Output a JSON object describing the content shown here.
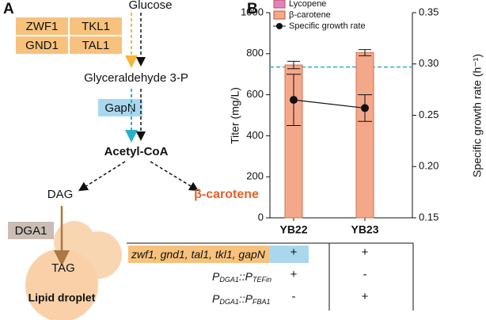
{
  "panel_a": {
    "label": "A",
    "enzymes_top": [
      "ZWF1",
      "TKL1",
      "GND1",
      "TAL1"
    ],
    "glucose": "Glucose",
    "g3p": "Glyceraldehyde 3-P",
    "gapn": "GapN",
    "acetyl_coa": "Acetyl-CoA",
    "dag": "DAG",
    "beta_carotene": "β-carotene",
    "dga1": "DGA1",
    "tag": "TAG",
    "lipid_droplet": "Lipid droplet"
  },
  "chart_data": {
    "type": "bar",
    "label": "B",
    "categories": [
      "YB22",
      "YB23"
    ],
    "ylabel": "Titer (mg/L)",
    "ylim": [
      0,
      1000
    ],
    "yticks": [
      0,
      200,
      400,
      600,
      800,
      1000
    ],
    "y2label": "Specific growth rate (h⁻¹)",
    "y2lim": [
      0.15,
      0.35
    ],
    "y2ticks": [
      {
        "value": 0.15,
        "label": "0.15"
      },
      {
        "value": 0.2,
        "label": "0.20"
      },
      {
        "value": 0.25,
        "label": "0.25"
      },
      {
        "value": 0.3,
        "label": "0.30"
      },
      {
        "value": 0.35,
        "label": "0.35"
      }
    ],
    "series": [
      {
        "name": "Lycopene",
        "color": "#e77dc6",
        "values": [
          0,
          0
        ]
      },
      {
        "name": "β-carotene",
        "color": "#f4a88a",
        "values": [
          745,
          805
        ],
        "errors": [
          18,
          15
        ]
      },
      {
        "name": "Specific growth rate",
        "color": "#111111",
        "axis": "y2",
        "type": "line",
        "values": [
          0.265,
          0.257
        ],
        "errors": [
          0.025,
          0.013
        ]
      }
    ],
    "reference_line": {
      "value": 0.297,
      "axis": "y2",
      "color": "#2aaed0"
    }
  },
  "table": {
    "rows": [
      {
        "label": "zwf1, gnd1, tal1, tkl1, ",
        "label_highlight": "gapN",
        "cells": [
          "+",
          "+"
        ]
      },
      {
        "label_parts": [
          "P",
          "DGA1",
          "::P",
          "TEFin"
        ],
        "cells": [
          "+",
          "-"
        ]
      },
      {
        "label_parts": [
          "P",
          "DGA1",
          "::P",
          "FBA1"
        ],
        "cells": [
          "-",
          "+"
        ]
      }
    ]
  }
}
